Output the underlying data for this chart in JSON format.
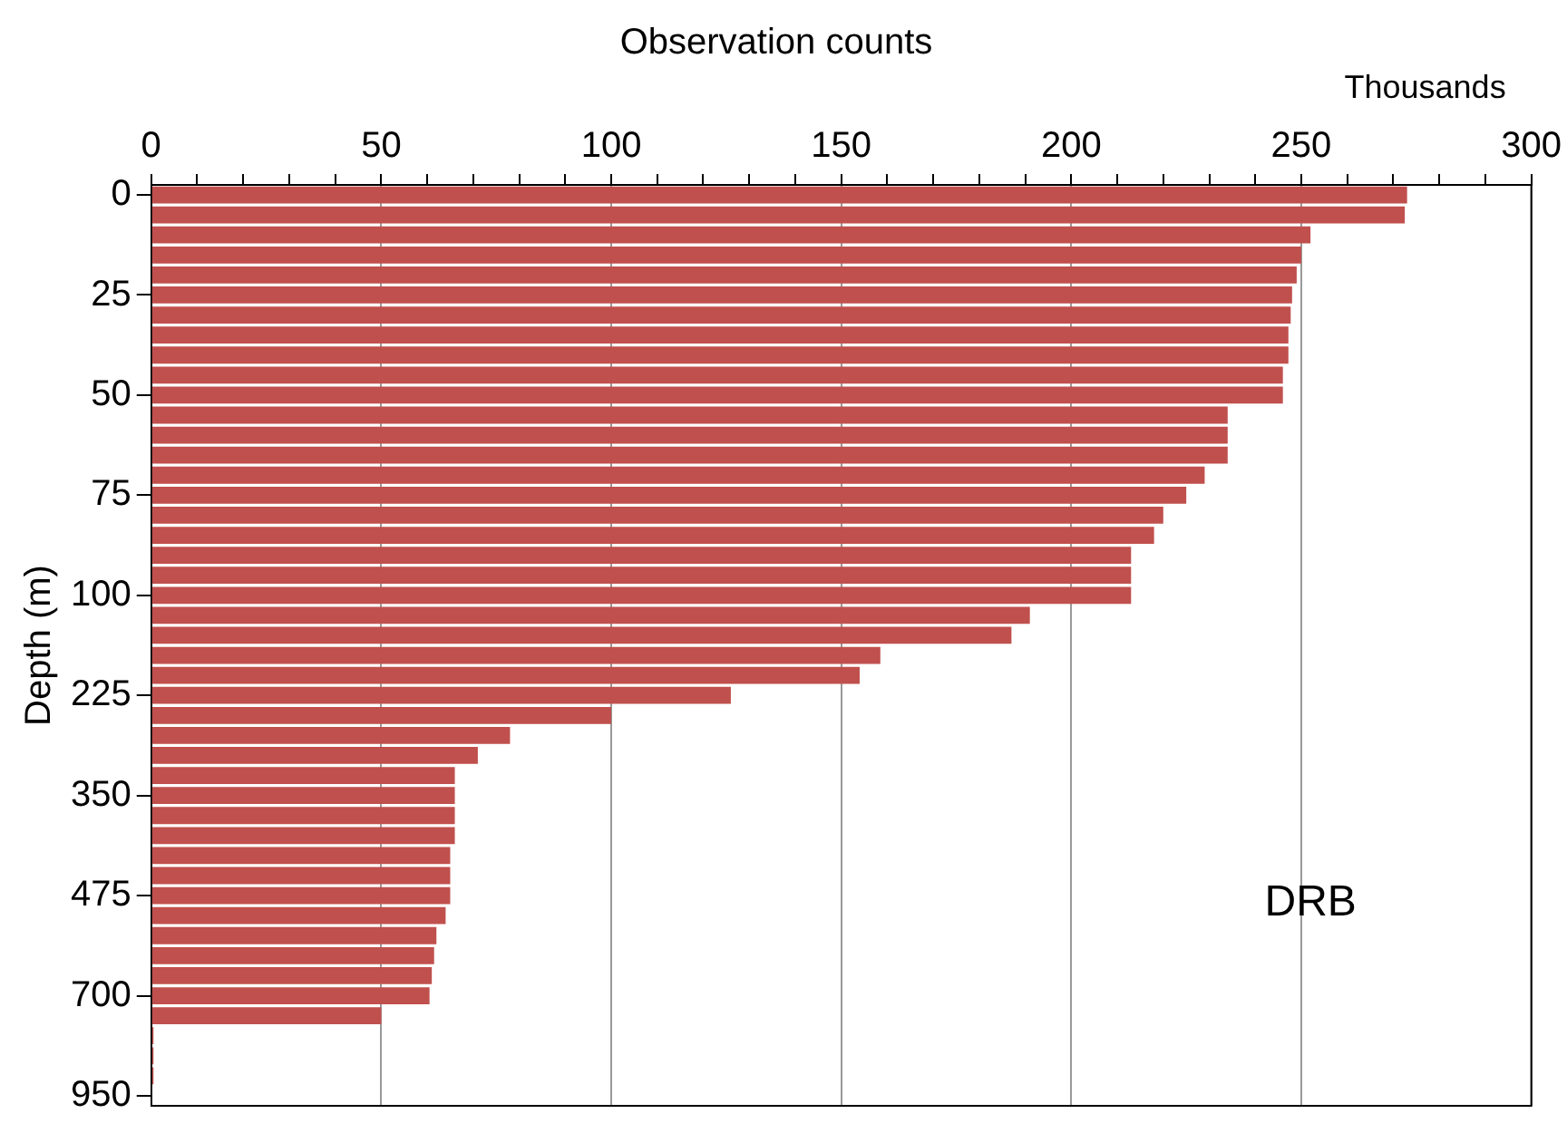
{
  "chart_data": {
    "type": "bar",
    "orientation": "horizontal",
    "title": "Observation counts",
    "ylabel": "Depth (m)",
    "annotations": [
      "Thousands",
      "DRB"
    ],
    "categories": [
      "0",
      null,
      null,
      null,
      null,
      "25",
      null,
      null,
      null,
      null,
      "50",
      null,
      null,
      null,
      null,
      "75",
      null,
      null,
      null,
      null,
      "100",
      null,
      null,
      null,
      null,
      "225",
      null,
      null,
      null,
      null,
      "350",
      null,
      null,
      null,
      null,
      "475",
      null,
      null,
      null,
      null,
      "700",
      null,
      null,
      null,
      null,
      "950"
    ],
    "values": [
      273,
      272.5,
      252,
      250,
      249,
      248,
      247.7,
      247.2,
      247.2,
      246,
      246,
      234,
      234,
      234,
      229,
      225,
      220,
      218,
      213,
      213,
      213,
      191,
      187,
      158.5,
      154,
      126,
      100,
      78,
      71,
      66,
      66,
      66,
      66,
      65,
      65,
      65,
      64,
      62,
      61.5,
      61,
      60.5,
      50,
      0.5,
      0.5,
      0.5,
      0
    ],
    "color": "#c0504d",
    "xlim": [
      0,
      300
    ],
    "xticks": [
      0,
      {
        "value": 10,
        "label": null
      },
      {
        "value": 20,
        "label": null
      },
      {
        "value": 30,
        "label": null
      },
      {
        "value": 40,
        "label": null
      },
      50,
      {
        "value": 60,
        "label": null
      },
      {
        "value": 70,
        "label": null
      },
      {
        "value": 80,
        "label": null
      },
      {
        "value": 90,
        "label": null
      },
      100,
      {
        "value": 110,
        "label": null
      },
      {
        "value": 120,
        "label": null
      },
      {
        "value": 130,
        "label": null
      },
      {
        "value": 140,
        "label": null
      },
      150,
      {
        "value": 160,
        "label": null
      },
      {
        "value": 170,
        "label": null
      },
      {
        "value": 180,
        "label": null
      },
      {
        "value": 190,
        "label": null
      },
      200,
      {
        "value": 210,
        "label": null
      },
      {
        "value": 220,
        "label": null
      },
      {
        "value": 230,
        "label": null
      },
      {
        "value": 240,
        "label": null
      },
      250,
      {
        "value": 260,
        "label": null
      },
      {
        "value": 270,
        "label": null
      },
      {
        "value": 280,
        "label": null
      },
      {
        "value": 290,
        "label": null
      },
      300
    ],
    "grid": "x",
    "legend": false
  }
}
